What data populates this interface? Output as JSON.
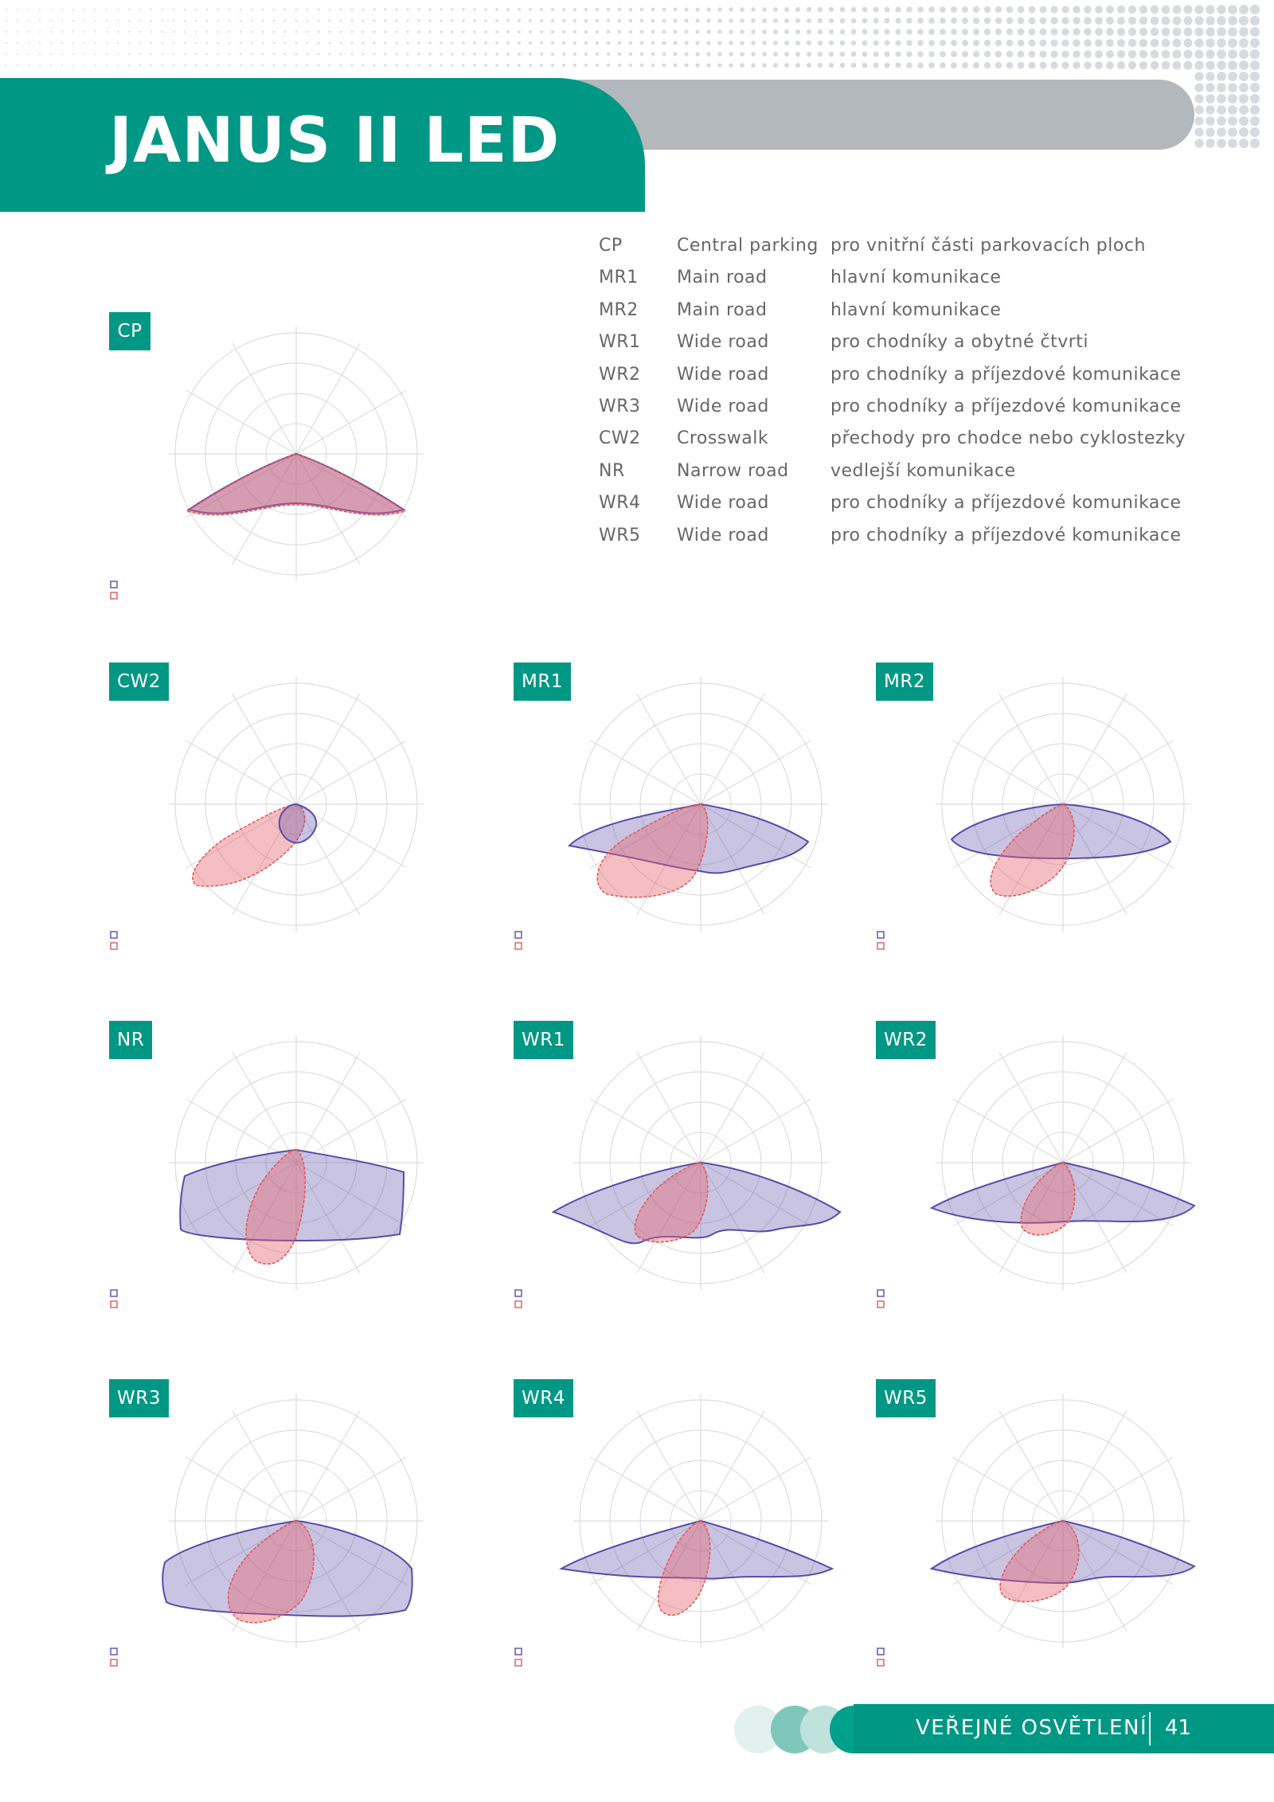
{
  "header": {
    "title": "JANUS II LED"
  },
  "colors": {
    "brand": "#009784",
    "grey": "#b3b8bd",
    "blue": "#6657b0",
    "red": "#e36464"
  },
  "legend": [
    {
      "code": "CP",
      "name": "Central parking",
      "desc": "pro vnitřní části parkovacích ploch"
    },
    {
      "code": "MR1",
      "name": "Main road",
      "desc": "hlavní komunikace"
    },
    {
      "code": "MR2",
      "name": "Main road",
      "desc": "hlavní komunikace"
    },
    {
      "code": "WR1",
      "name": "Wide road",
      "desc": "pro chodníky a obytné čtvrti"
    },
    {
      "code": "WR2",
      "name": "Wide road",
      "desc": "pro chodníky a příjezdové komunikace"
    },
    {
      "code": "WR3",
      "name": "Wide road",
      "desc": "pro chodníky a příjezdové komunikace"
    },
    {
      "code": "CW2",
      "name": "Crosswalk",
      "desc": "přechody pro chodce nebo cyklostezky"
    },
    {
      "code": "NR",
      "name": "Narrow road",
      "desc": "vedlejší komunikace"
    },
    {
      "code": "WR4",
      "name": "Wide road",
      "desc": "pro chodníky a příjezdové komunikace"
    },
    {
      "code": "WR5",
      "name": "Wide road",
      "desc": "pro chodníky a příjezdové komunikace"
    }
  ],
  "diagrams": [
    {
      "label": "CP"
    },
    {
      "label": "CW2"
    },
    {
      "label": "MR1"
    },
    {
      "label": "MR2"
    },
    {
      "label": "NR"
    },
    {
      "label": "WR1"
    },
    {
      "label": "WR2"
    },
    {
      "label": "WR3"
    },
    {
      "label": "WR4"
    },
    {
      "label": "WR5"
    }
  ],
  "footer": {
    "section": "VEŘEJNÉ OSVĚTLENÍ",
    "page": "41"
  }
}
